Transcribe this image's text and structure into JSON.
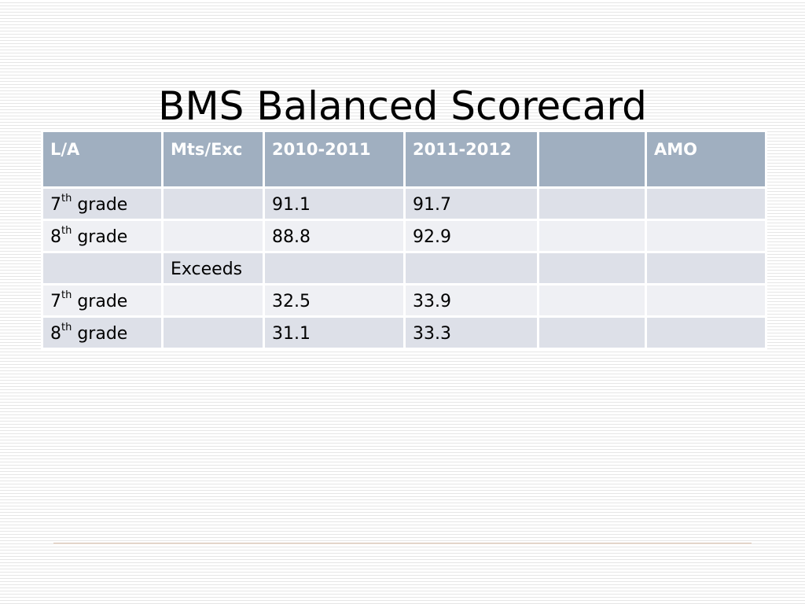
{
  "slide": {
    "title": "BMS Balanced Scorecard"
  },
  "table": {
    "headers": [
      "L/A",
      "Mts/Exc",
      "2010-2011",
      "2011-2012",
      "",
      "AMO"
    ],
    "grade_suffix": "th",
    "grade_word": "grade",
    "rows": [
      {
        "grade_number": "7",
        "mts_exc": "",
        "y2010_2011": "91.1",
        "y2011_2012": "91.7",
        "col5": "",
        "amo": ""
      },
      {
        "grade_number": "8",
        "mts_exc": "",
        "y2010_2011": "88.8",
        "y2011_2012": "92.9",
        "col5": "",
        "amo": ""
      },
      {
        "grade_number": "",
        "mts_exc": "Exceeds",
        "y2010_2011": "",
        "y2011_2012": "",
        "col5": "",
        "amo": ""
      },
      {
        "grade_number": "7",
        "mts_exc": "",
        "y2010_2011": "32.5",
        "y2011_2012": "33.9",
        "col5": "",
        "amo": ""
      },
      {
        "grade_number": "8",
        "mts_exc": "",
        "y2010_2011": "31.1",
        "y2011_2012": "33.3",
        "col5": "",
        "amo": ""
      }
    ]
  },
  "colors": {
    "header_fill": "#a0afc0",
    "row_fill_dark": "#dde0e8",
    "row_fill_light": "#eff0f4"
  }
}
